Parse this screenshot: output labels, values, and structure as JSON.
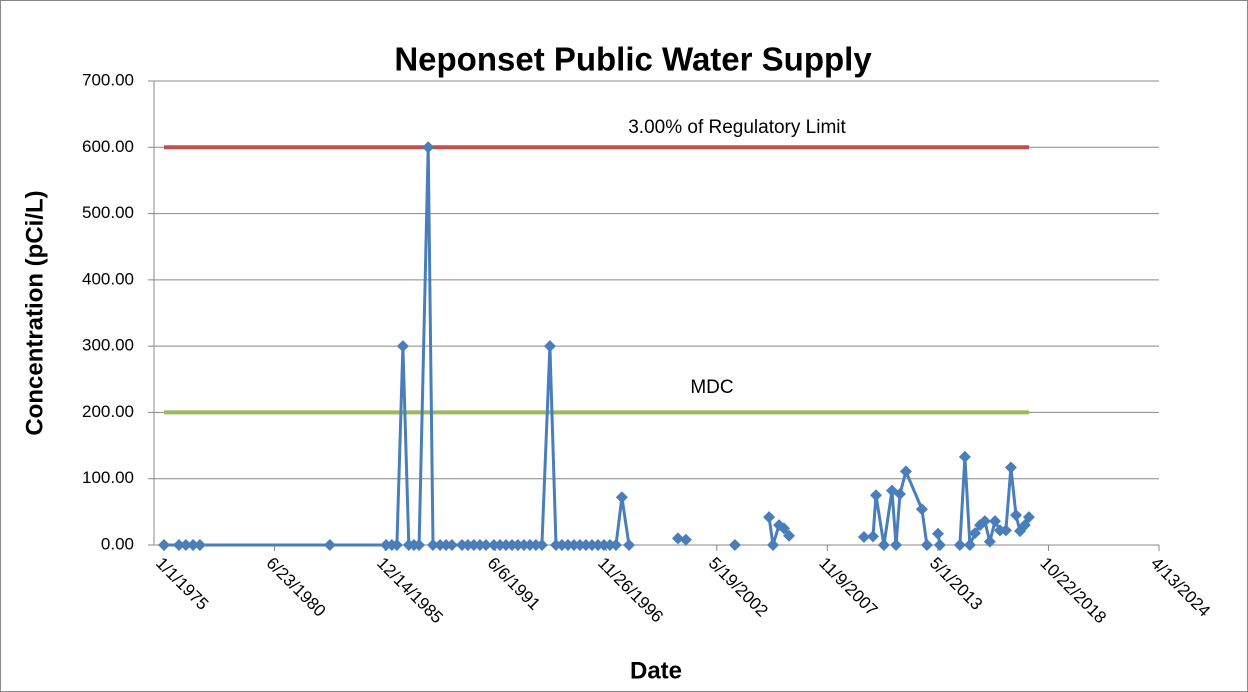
{
  "chart_data": {
    "type": "line",
    "title": "Neponset Public Water Supply",
    "x_label": "Date",
    "y_label": "Concentration (pCi/L)",
    "grid": true,
    "xlim": [
      "1975-01-01",
      "2024-04-13"
    ],
    "xticks": [
      {
        "value": "1975-01-01",
        "label": "1/1/1975"
      },
      {
        "value": "1980-06-23",
        "label": "6/23/1980"
      },
      {
        "value": "1985-12-14",
        "label": "12/14/1985"
      },
      {
        "value": "1991-06-06",
        "label": "6/6/1991"
      },
      {
        "value": "1996-11-26",
        "label": "11/26/1996"
      },
      {
        "value": "2002-05-19",
        "label": "5/19/2002"
      },
      {
        "value": "2007-11-09",
        "label": "11/9/2007"
      },
      {
        "value": "2013-05-01",
        "label": "5/1/2013"
      },
      {
        "value": "2018-10-22",
        "label": "10/22/2018"
      },
      {
        "value": "2024-04-13",
        "label": "4/13/2024"
      }
    ],
    "ylim": [
      0,
      700
    ],
    "yticks": [
      {
        "value": 0,
        "label": "0.00"
      },
      {
        "value": 100,
        "label": "100.00"
      },
      {
        "value": 200,
        "label": "200.00"
      },
      {
        "value": 300,
        "label": "300.00"
      },
      {
        "value": 400,
        "label": "400.00"
      },
      {
        "value": 500,
        "label": "500.00"
      },
      {
        "value": 600,
        "label": "600.00"
      },
      {
        "value": 700,
        "label": "700.00"
      }
    ],
    "series": [
      {
        "name": "3.00% of Regulatory Limit",
        "color": "#c0504d",
        "markers": false,
        "x": [
          "1975-01-01",
          "2017-11-06"
        ],
        "values": [
          600,
          600
        ]
      },
      {
        "name": "MDC",
        "color": "#9bbb59",
        "markers": false,
        "x": [
          "1975-01-01",
          "2017-11-06"
        ],
        "values": [
          200,
          200
        ]
      },
      {
        "color": "#4a7ebb",
        "markers": true,
        "x": [
          "1975-01-01",
          "1975-09-28",
          "1976-02-01",
          "1976-06-10",
          "1976-10-12",
          "1983-03-20",
          "1986-01-01",
          "1986-04-15",
          "1986-07-15",
          "1986-11-01",
          "1987-02-15",
          "1987-05-20",
          "1987-08-20",
          "1988-02-01",
          "1988-04-28",
          "1988-09-03",
          "1988-12-20",
          "1989-04-05",
          "1989-10-05",
          "1990-01-20",
          "1990-05-08",
          "1990-08-25",
          "1990-12-12",
          "1991-05-05",
          "1991-08-22",
          "1991-12-10",
          "1992-03-28",
          "1992-07-12",
          "1992-10-30",
          "1993-02-15",
          "1993-06-03",
          "1993-09-20",
          "1994-02-12",
          "1994-06-01",
          "1994-09-17",
          "1995-01-04",
          "1995-04-22",
          "1995-08-08",
          "1995-11-25",
          "1996-03-14",
          "1996-06-30",
          "1996-10-16",
          "1997-02-01",
          "1997-05-21",
          "1997-09-05",
          "1998-01-12",
          null,
          "2000-06-16",
          "2000-11-06",
          null,
          "2003-04-12",
          null,
          "2004-12-20",
          "2005-03-01",
          "2005-06-18",
          "2005-09-16",
          "2005-12-16",
          null,
          "2009-09-01",
          "2010-02-12",
          "2010-04-08",
          "2010-08-28",
          "2011-01-22",
          "2011-04-05",
          "2011-06-15",
          "2011-10-01",
          "2012-07-16",
          "2012-10-15",
          null,
          "2013-05-03",
          "2013-06-06",
          null,
          "2014-06-03",
          "2014-09-01",
          "2014-12-01",
          "2015-03-03",
          "2015-06-02",
          "2015-08-28",
          "2015-11-27",
          "2016-02-28",
          "2016-05-28",
          "2016-09-12",
          "2016-12-12",
          "2017-03-14",
          "2017-05-26",
          "2017-08-21",
          "2017-11-03"
        ],
        "values": [
          0,
          0,
          0,
          0,
          0,
          0,
          0,
          0,
          0,
          300,
          0,
          0,
          0,
          600,
          0,
          0,
          0,
          0,
          0,
          0,
          0,
          0,
          0,
          0,
          0,
          0,
          0,
          0,
          0,
          0,
          0,
          0,
          300,
          0,
          0,
          0,
          0,
          0,
          0,
          0,
          0,
          0,
          0,
          0,
          72,
          0,
          null,
          10,
          8,
          null,
          0,
          null,
          42,
          0,
          30,
          25,
          14,
          null,
          12,
          13,
          75,
          0,
          82,
          0,
          77,
          111,
          54,
          0,
          null,
          17,
          0,
          null,
          0,
          133,
          0,
          18,
          30,
          36,
          5,
          36,
          22,
          22,
          117,
          45,
          21,
          30,
          42
        ]
      }
    ]
  }
}
